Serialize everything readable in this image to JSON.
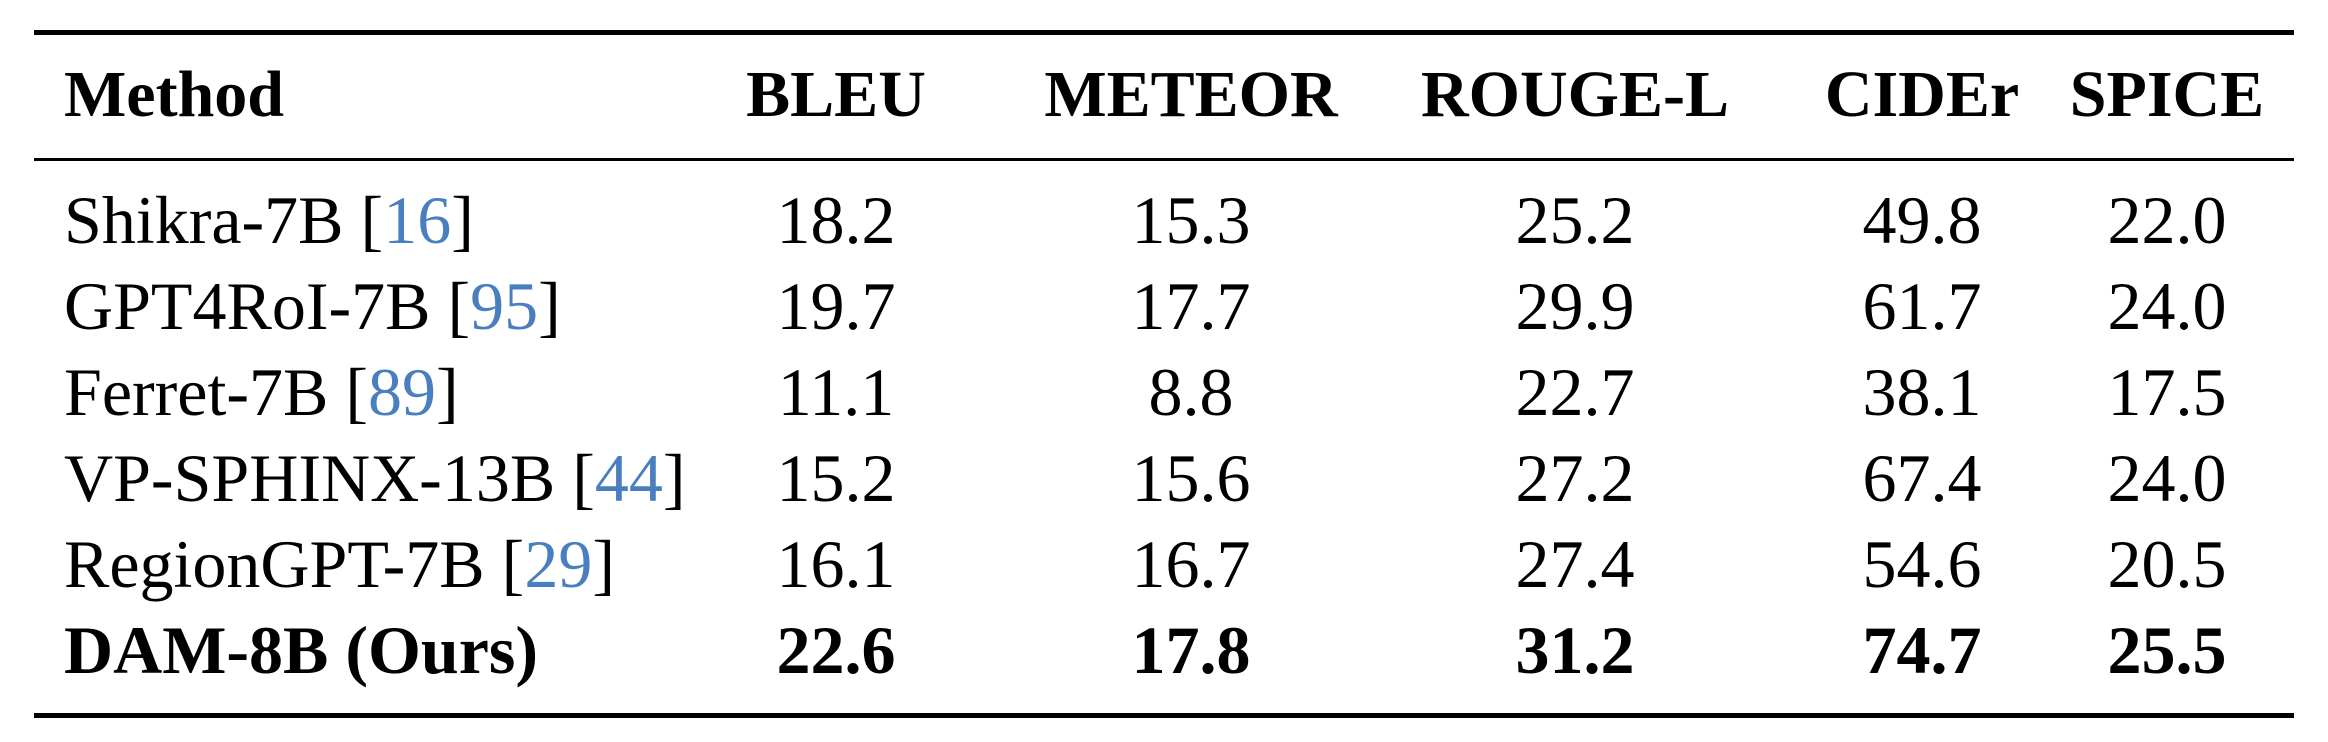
{
  "table": {
    "columns": [
      "Method",
      "BLEU",
      "METEOR",
      "ROUGE-L",
      "CIDEr",
      "SPICE"
    ],
    "rows": [
      {
        "method": "Shikra-7B",
        "ref": "16",
        "values": [
          "18.2",
          "15.3",
          "25.2",
          "49.8",
          "22.0"
        ]
      },
      {
        "method": "GPT4RoI-7B",
        "ref": "95",
        "values": [
          "19.7",
          "17.7",
          "29.9",
          "61.7",
          "24.0"
        ]
      },
      {
        "method": "Ferret-7B",
        "ref": "89",
        "values": [
          "11.1",
          "8.8",
          "22.7",
          "38.1",
          "17.5"
        ]
      },
      {
        "method": "VP-SPHINX-13B",
        "ref": "44",
        "values": [
          "15.2",
          "15.6",
          "27.2",
          "67.4",
          "24.0"
        ]
      },
      {
        "method": "RegionGPT-7B",
        "ref": "29",
        "values": [
          "16.1",
          "16.7",
          "27.4",
          "54.6",
          "20.5"
        ]
      },
      {
        "method": "DAM-8B (Ours)",
        "ref": "",
        "values": [
          "22.6",
          "17.8",
          "31.2",
          "74.7",
          "25.5"
        ],
        "bold": true
      }
    ],
    "citation_color": "#4a7fbf"
  }
}
